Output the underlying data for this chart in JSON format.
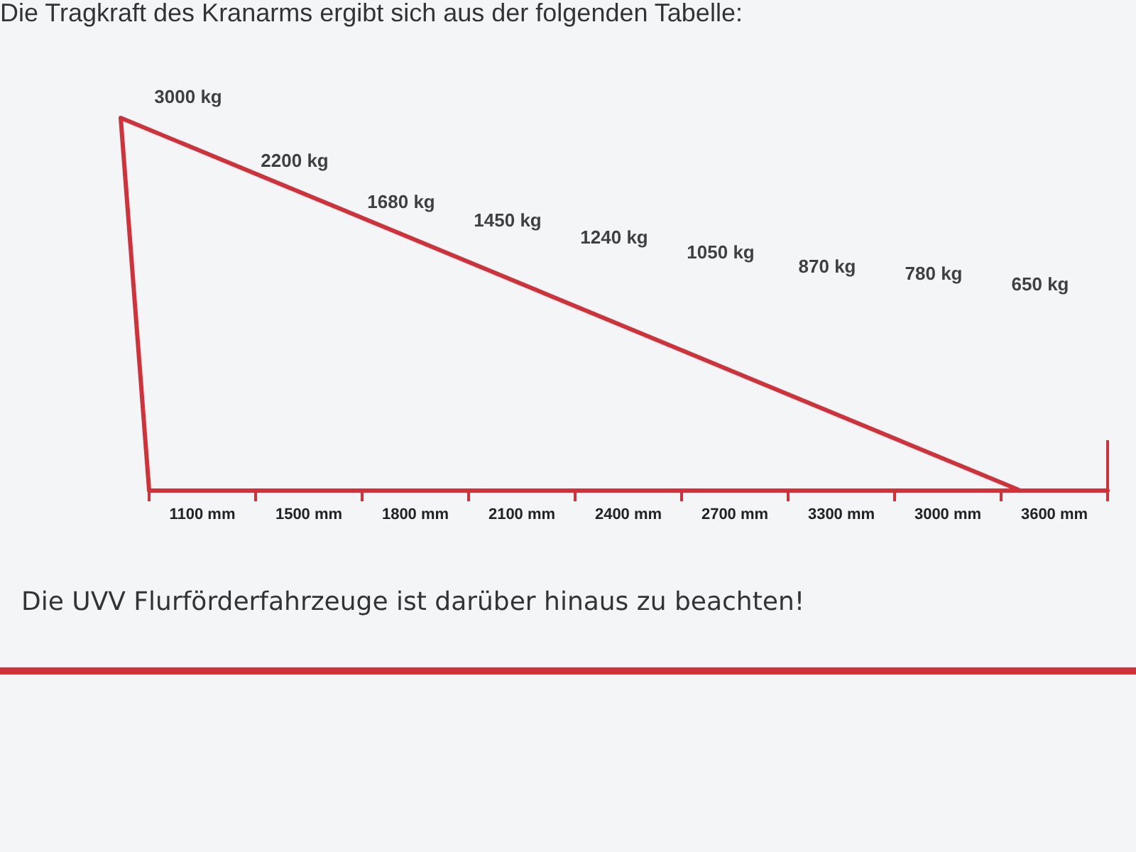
{
  "chart_data": {
    "type": "other",
    "title": "Die Tragkraft des Kranarms ergibt sich aus der folgenden Tabelle:",
    "annotations": [
      "Die UVV Flurförderfahrzeuge ist darüber hinaus zu beachten!"
    ],
    "categories": [
      "1100 mm",
      "1500 mm",
      "1800 mm",
      "2100 mm",
      "2400 mm",
      "2700 mm",
      "3300 mm",
      "3000 mm",
      "3600 mm"
    ],
    "values": [
      3000,
      2200,
      1680,
      1450,
      1240,
      1050,
      870,
      780,
      650
    ],
    "value_labels": [
      "3000 kg",
      "2200 kg",
      "1680 kg",
      "1450 kg",
      "1240 kg",
      "1050 kg",
      "870 kg",
      "780 kg",
      "650 kg"
    ],
    "color": "#d2313a"
  }
}
